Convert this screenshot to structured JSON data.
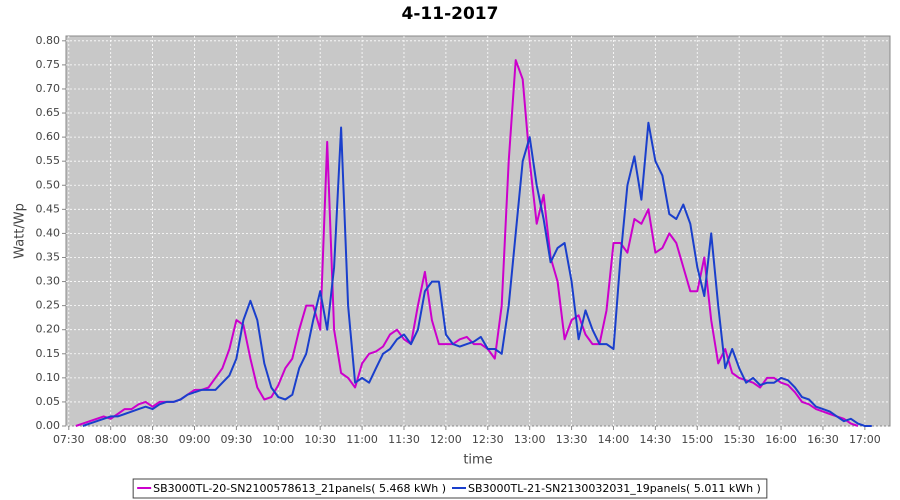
{
  "chart_data": {
    "type": "line",
    "title": "4-11-2017",
    "x_label": "time",
    "y_label": "Watt/Wp",
    "x": [
      "07:35",
      "07:40",
      "07:45",
      "07:50",
      "07:55",
      "08:00",
      "08:05",
      "08:10",
      "08:15",
      "08:20",
      "08:25",
      "08:30",
      "08:35",
      "08:40",
      "08:45",
      "08:50",
      "08:55",
      "09:00",
      "09:05",
      "09:10",
      "09:15",
      "09:20",
      "09:25",
      "09:30",
      "09:35",
      "09:40",
      "09:45",
      "09:50",
      "09:55",
      "10:00",
      "10:05",
      "10:10",
      "10:15",
      "10:20",
      "10:25",
      "10:30",
      "10:35",
      "10:40",
      "10:45",
      "10:50",
      "10:55",
      "11:00",
      "11:05",
      "11:10",
      "11:15",
      "11:20",
      "11:25",
      "11:30",
      "11:35",
      "11:40",
      "11:45",
      "11:50",
      "11:55",
      "12:00",
      "12:05",
      "12:10",
      "12:15",
      "12:20",
      "12:25",
      "12:30",
      "12:35",
      "12:40",
      "12:45",
      "12:50",
      "12:55",
      "13:00",
      "13:05",
      "13:10",
      "13:15",
      "13:20",
      "13:25",
      "13:30",
      "13:35",
      "13:40",
      "13:45",
      "13:50",
      "13:55",
      "14:00",
      "14:05",
      "14:10",
      "14:15",
      "14:20",
      "14:25",
      "14:30",
      "14:35",
      "14:40",
      "14:45",
      "14:50",
      "14:55",
      "15:00",
      "15:05",
      "15:10",
      "15:15",
      "15:20",
      "15:25",
      "15:30",
      "15:35",
      "15:40",
      "15:45",
      "15:50",
      "15:55",
      "16:00",
      "16:05",
      "16:10",
      "16:15",
      "16:20",
      "16:25",
      "16:30",
      "16:35",
      "16:40",
      "16:45",
      "16:50",
      "16:55",
      "17:00",
      "17:05"
    ],
    "series": [
      {
        "name": "SB3000TL-20-SN2100578613_21panels( 5.468 kWh )",
        "color": "#cc00cc",
        "values": [
          0,
          0.005,
          0.01,
          0.015,
          0.02,
          0.015,
          0.025,
          0.035,
          0.035,
          0.045,
          0.05,
          0.04,
          0.05,
          0.05,
          0.05,
          0.055,
          0.065,
          0.075,
          0.075,
          0.08,
          0.1,
          0.12,
          0.16,
          0.22,
          0.21,
          0.14,
          0.08,
          0.055,
          0.06,
          0.085,
          0.12,
          0.14,
          0.2,
          0.25,
          0.25,
          0.2,
          0.59,
          0.2,
          0.11,
          0.1,
          0.08,
          0.13,
          0.15,
          0.155,
          0.165,
          0.19,
          0.2,
          0.18,
          0.17,
          0.25,
          0.32,
          0.22,
          0.17,
          0.17,
          0.17,
          0.18,
          0.185,
          0.17,
          0.17,
          0.16,
          0.14,
          0.25,
          0.55,
          0.76,
          0.72,
          0.55,
          0.42,
          0.48,
          0.35,
          0.3,
          0.18,
          0.22,
          0.23,
          0.19,
          0.17,
          0.17,
          0.24,
          0.38,
          0.38,
          0.36,
          0.43,
          0.42,
          0.45,
          0.36,
          0.37,
          0.4,
          0.38,
          0.33,
          0.28,
          0.28,
          0.35,
          0.22,
          0.13,
          0.16,
          0.11,
          0.1,
          0.095,
          0.09,
          0.08,
          0.1,
          0.1,
          0.09,
          0.085,
          0.07,
          0.05,
          0.045,
          0.035,
          0.03,
          0.025,
          0.02,
          0.015,
          0.005,
          0,
          null,
          null
        ]
      },
      {
        "name": "SB3000TL-21-SN2130032031_19panels( 5.011 kWh )",
        "color": "#1a3fcc",
        "values": [
          null,
          0,
          0.005,
          0.01,
          0.015,
          0.02,
          0.02,
          0.025,
          0.03,
          0.035,
          0.04,
          0.035,
          0.045,
          0.05,
          0.05,
          0.055,
          0.065,
          0.07,
          0.075,
          0.075,
          0.075,
          0.09,
          0.105,
          0.14,
          0.22,
          0.26,
          0.22,
          0.13,
          0.08,
          0.06,
          0.055,
          0.065,
          0.12,
          0.15,
          0.22,
          0.28,
          0.2,
          0.33,
          0.62,
          0.25,
          0.09,
          0.1,
          0.09,
          0.12,
          0.15,
          0.16,
          0.18,
          0.19,
          0.17,
          0.2,
          0.28,
          0.3,
          0.3,
          0.19,
          0.17,
          0.165,
          0.17,
          0.175,
          0.185,
          0.16,
          0.16,
          0.15,
          0.25,
          0.4,
          0.55,
          0.6,
          0.5,
          0.43,
          0.34,
          0.37,
          0.38,
          0.3,
          0.18,
          0.24,
          0.2,
          0.17,
          0.17,
          0.16,
          0.35,
          0.5,
          0.56,
          0.47,
          0.63,
          0.55,
          0.52,
          0.44,
          0.43,
          0.46,
          0.42,
          0.33,
          0.27,
          0.4,
          0.25,
          0.12,
          0.16,
          0.12,
          0.09,
          0.1,
          0.085,
          0.09,
          0.09,
          0.1,
          0.095,
          0.08,
          0.06,
          0.055,
          0.04,
          0.035,
          0.03,
          0.02,
          0.01,
          0.015,
          0.005,
          0,
          0
        ]
      }
    ],
    "xlim": [
      "07:28",
      "17:18"
    ],
    "xticks": [
      "07:30",
      "08:00",
      "08:30",
      "09:00",
      "09:30",
      "10:00",
      "10:30",
      "11:00",
      "11:30",
      "12:00",
      "12:30",
      "13:00",
      "13:30",
      "14:00",
      "14:30",
      "15:00",
      "15:30",
      "16:00",
      "16:30",
      "17:00"
    ],
    "ylim": [
      0,
      0.81
    ],
    "yticks": [
      {
        "value": 0,
        "label": "0.00"
      },
      {
        "value": 0.05,
        "label": "0.05"
      },
      {
        "value": 0.1,
        "label": "0.10"
      },
      {
        "value": 0.15,
        "label": "0.15"
      },
      {
        "value": 0.2,
        "label": "0.20"
      },
      {
        "value": 0.25,
        "label": "0.25"
      },
      {
        "value": 0.3,
        "label": "0.30"
      },
      {
        "value": 0.35,
        "label": "0.35"
      },
      {
        "value": 0.4,
        "label": "0.40"
      },
      {
        "value": 0.45,
        "label": "0.45"
      },
      {
        "value": 0.5,
        "label": "0.50"
      },
      {
        "value": 0.55,
        "label": "0.55"
      },
      {
        "value": 0.6,
        "label": "0.60"
      },
      {
        "value": 0.65,
        "label": "0.65"
      },
      {
        "value": 0.7,
        "label": "0.70"
      },
      {
        "value": 0.75,
        "label": "0.75"
      },
      {
        "value": 0.8,
        "label": "0.80"
      }
    ],
    "grid": true,
    "legend": "bottom"
  }
}
